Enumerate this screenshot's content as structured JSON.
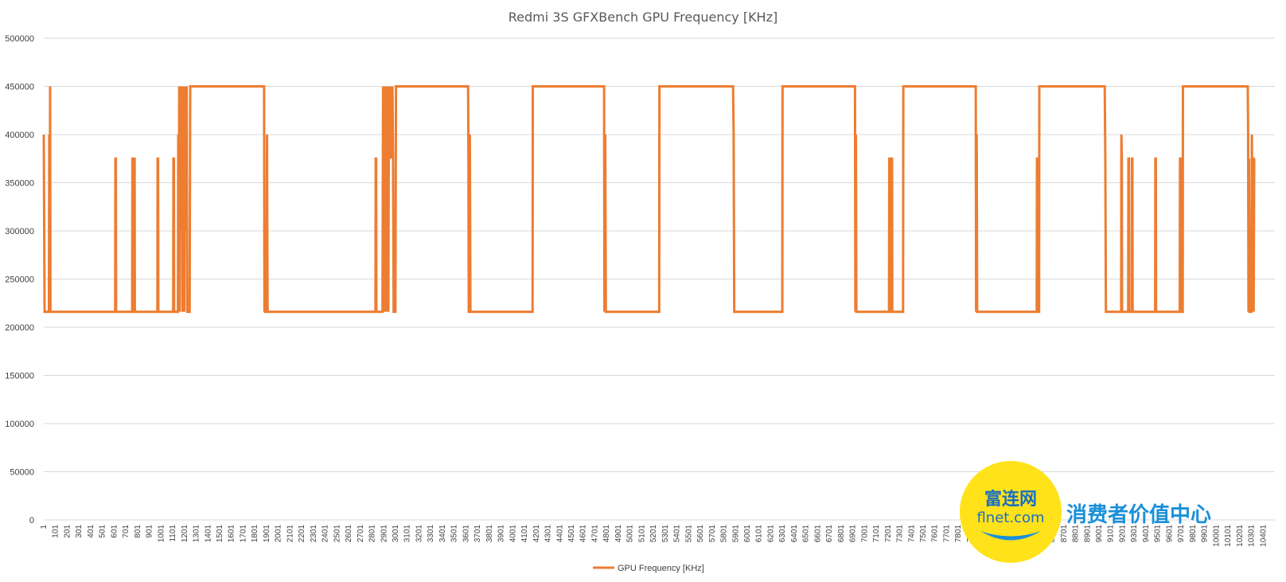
{
  "chart_data": {
    "type": "line",
    "title": "Redmi 3S GFXBench GPU Frequency [KHz]",
    "xlabel": "",
    "ylabel": "",
    "ylim": [
      0,
      500000
    ],
    "yticks": [
      0,
      50000,
      100000,
      150000,
      200000,
      250000,
      300000,
      350000,
      400000,
      450000,
      500000
    ],
    "xlim": [
      1,
      10501
    ],
    "xtick_step": 100,
    "grid": true,
    "legend_position": "bottom",
    "color": "#ED7D31",
    "series": [
      {
        "name": "GPU Frequency [KHz]",
        "points": [
          [
            1,
            400000
          ],
          [
            8,
            216000
          ],
          [
            45,
            216000
          ],
          [
            48,
            400000
          ],
          [
            52,
            216000
          ],
          [
            55,
            450000
          ],
          [
            58,
            216000
          ],
          [
            610,
            216000
          ],
          [
            612,
            375000
          ],
          [
            616,
            375000
          ],
          [
            618,
            216000
          ],
          [
            755,
            216000
          ],
          [
            757,
            375000
          ],
          [
            761,
            375000
          ],
          [
            763,
            216000
          ],
          [
            770,
            216000
          ],
          [
            772,
            375000
          ],
          [
            776,
            375000
          ],
          [
            778,
            216000
          ],
          [
            970,
            216000
          ],
          [
            972,
            375000
          ],
          [
            976,
            375000
          ],
          [
            978,
            216000
          ],
          [
            1105,
            216000
          ],
          [
            1107,
            375000
          ],
          [
            1111,
            375000
          ],
          [
            1113,
            216000
          ],
          [
            1145,
            216000
          ],
          [
            1148,
            400000
          ],
          [
            1152,
            216000
          ],
          [
            1156,
            450000
          ],
          [
            1160,
            216000
          ],
          [
            1164,
            450000
          ],
          [
            1168,
            300000
          ],
          [
            1172,
            450000
          ],
          [
            1176,
            375000
          ],
          [
            1180,
            450000
          ],
          [
            1184,
            216000
          ],
          [
            1188,
            450000
          ],
          [
            1192,
            375000
          ],
          [
            1196,
            450000
          ],
          [
            1200,
            216000
          ],
          [
            1204,
            450000
          ],
          [
            1208,
            375000
          ],
          [
            1212,
            450000
          ],
          [
            1216,
            300000
          ],
          [
            1220,
            450000
          ],
          [
            1225,
            216000
          ],
          [
            1245,
            216000
          ],
          [
            1250,
            450000
          ],
          [
            1880,
            450000
          ],
          [
            1883,
            216000
          ],
          [
            1886,
            300000
          ],
          [
            1890,
            216000
          ],
          [
            1900,
            216000
          ],
          [
            1905,
            400000
          ],
          [
            1910,
            216000
          ],
          [
            2830,
            216000
          ],
          [
            2832,
            375000
          ],
          [
            2836,
            375000
          ],
          [
            2838,
            216000
          ],
          [
            2890,
            216000
          ],
          [
            2895,
            450000
          ],
          [
            2900,
            216000
          ],
          [
            2905,
            450000
          ],
          [
            2910,
            216000
          ],
          [
            2915,
            450000
          ],
          [
            2920,
            216000
          ],
          [
            2925,
            450000
          ],
          [
            2930,
            400000
          ],
          [
            2935,
            450000
          ],
          [
            2940,
            216000
          ],
          [
            2945,
            450000
          ],
          [
            2950,
            400000
          ],
          [
            2955,
            450000
          ],
          [
            2960,
            375000
          ],
          [
            2965,
            450000
          ],
          [
            2970,
            400000
          ],
          [
            2975,
            450000
          ],
          [
            2980,
            375000
          ],
          [
            2985,
            216000
          ],
          [
            3000,
            216000
          ],
          [
            3005,
            450000
          ],
          [
            3620,
            450000
          ],
          [
            3623,
            375000
          ],
          [
            3626,
            216000
          ],
          [
            3630,
            216000
          ],
          [
            3635,
            400000
          ],
          [
            3640,
            216000
          ],
          [
            4170,
            216000
          ],
          [
            4172,
            450000
          ],
          [
            4780,
            450000
          ],
          [
            4783,
            216000
          ],
          [
            4790,
            400000
          ],
          [
            4795,
            216000
          ],
          [
            5250,
            216000
          ],
          [
            5252,
            450000
          ],
          [
            5880,
            450000
          ],
          [
            5885,
            400000
          ],
          [
            5890,
            216000
          ],
          [
            6300,
            216000
          ],
          [
            6302,
            450000
          ],
          [
            6920,
            450000
          ],
          [
            6923,
            216000
          ],
          [
            6928,
            400000
          ],
          [
            6932,
            216000
          ],
          [
            7210,
            216000
          ],
          [
            7212,
            375000
          ],
          [
            7216,
            375000
          ],
          [
            7218,
            216000
          ],
          [
            7230,
            216000
          ],
          [
            7232,
            375000
          ],
          [
            7236,
            375000
          ],
          [
            7238,
            216000
          ],
          [
            7330,
            216000
          ],
          [
            7332,
            450000
          ],
          [
            7950,
            450000
          ],
          [
            7953,
            216000
          ],
          [
            7958,
            400000
          ],
          [
            7962,
            216000
          ],
          [
            8470,
            216000
          ],
          [
            8472,
            375000
          ],
          [
            8476,
            375000
          ],
          [
            8478,
            216000
          ],
          [
            8490,
            216000
          ],
          [
            8492,
            450000
          ],
          [
            9050,
            450000
          ],
          [
            9055,
            375000
          ],
          [
            9060,
            216000
          ],
          [
            9190,
            216000
          ],
          [
            9192,
            400000
          ],
          [
            9196,
            375000
          ],
          [
            9198,
            216000
          ],
          [
            9250,
            216000
          ],
          [
            9252,
            375000
          ],
          [
            9256,
            375000
          ],
          [
            9258,
            216000
          ],
          [
            9280,
            216000
          ],
          [
            9282,
            375000
          ],
          [
            9286,
            375000
          ],
          [
            9288,
            216000
          ],
          [
            9480,
            216000
          ],
          [
            9482,
            375000
          ],
          [
            9486,
            375000
          ],
          [
            9488,
            216000
          ],
          [
            9690,
            216000
          ],
          [
            9692,
            375000
          ],
          [
            9696,
            375000
          ],
          [
            9698,
            216000
          ],
          [
            9705,
            216000
          ],
          [
            9707,
            375000
          ],
          [
            9711,
            375000
          ],
          [
            9713,
            216000
          ],
          [
            9715,
            216000
          ],
          [
            9717,
            450000
          ],
          [
            10270,
            450000
          ],
          [
            10273,
            400000
          ],
          [
            10276,
            216000
          ],
          [
            10280,
            375000
          ],
          [
            10284,
            216000
          ],
          [
            10300,
            216000
          ],
          [
            10305,
            400000
          ],
          [
            10310,
            300000
          ],
          [
            10315,
            375000
          ],
          [
            10320,
            216000
          ],
          [
            10325,
            375000
          ],
          [
            10330,
            375000
          ]
        ]
      }
    ]
  },
  "watermark": {
    "logo_cn": "富连网",
    "logo_url": "flnet.com",
    "slogan": "消费者价值中心",
    "logo_color": "#FFE21A",
    "text_color": "#1A6FC2"
  }
}
